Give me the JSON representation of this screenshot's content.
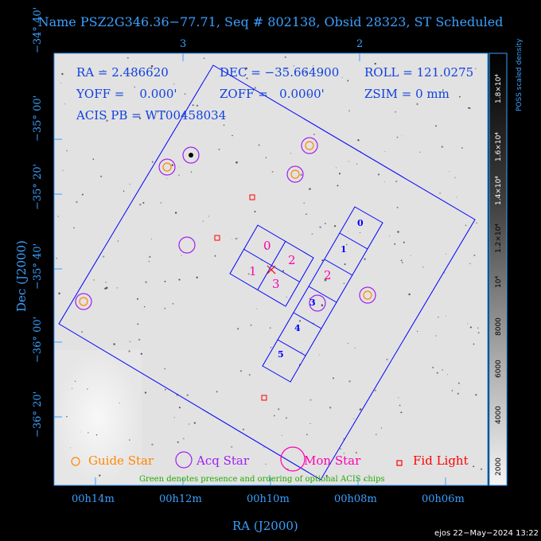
{
  "title": "Name PSZ2G346.36−77.71, Seq # 802138, Obsid 28323, ST Scheduled",
  "info": {
    "ra": "RA = 2.486620",
    "dec": "DEC = −35.664900",
    "roll": "ROLL = 121.0275",
    "yoff": "YOFF =    0.000'",
    "zoff": "ZOFF =   0.0000'",
    "zsim": "ZSIM = 0 mm",
    "acis_pb": "ACIS PB = WT00458034"
  },
  "axes": {
    "xlabel": "RA (J2000)",
    "ylabel": "Dec (J2000)",
    "x_ticks": [
      "00h14m",
      "00h12m",
      "00h10m",
      "00h08m",
      "00h06m"
    ],
    "y_ticks": [
      "−34° 40'",
      "−35° 00'",
      "−35° 20'",
      "−35° 40'",
      "−36° 00'",
      "−36° 20'"
    ],
    "top_ticks": [
      "3",
      "2"
    ]
  },
  "colorbar": {
    "title": "POSS scaled density",
    "labels": [
      "1.8×10⁴",
      "1.6×10⁴",
      "1.4×10⁴",
      "1.2×10⁴",
      "10⁴",
      "8000",
      "6000",
      "4000",
      "2000"
    ]
  },
  "chips": {
    "hrc": [
      "0",
      "1",
      "2",
      "3"
    ],
    "acis_s": [
      "0",
      "1",
      "2",
      "3",
      "4",
      "5"
    ]
  },
  "legend": {
    "guide": "Guide Star",
    "acq": "Acq Star",
    "mon": "Mon Star",
    "fid": "Fid Light",
    "note": "Green denotes presence and ordering of optional ACIS chips"
  },
  "colors": {
    "guide": "#ff8800",
    "acq": "#a020f0",
    "mon": "#ff00b0",
    "fid": "#ff0000",
    "field": "#0000ff",
    "axis": "#3aa0ff",
    "note": "#22aa00"
  },
  "footer": "ejos 22−May−2024 13:22"
}
